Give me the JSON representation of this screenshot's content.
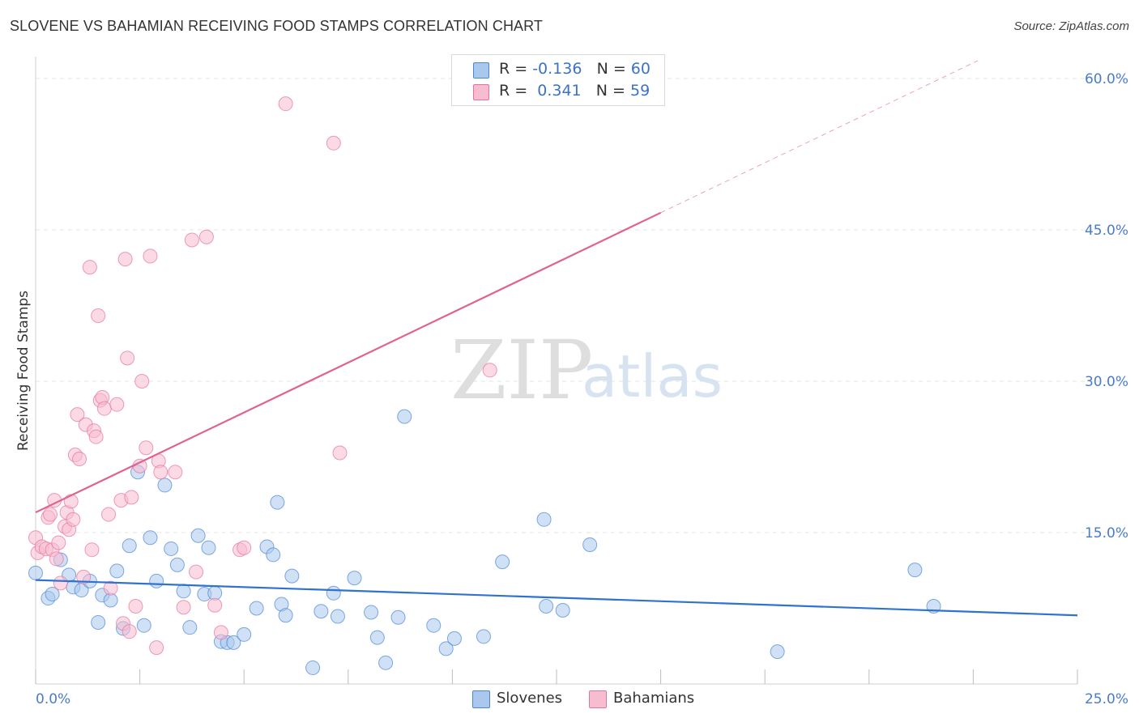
{
  "title": "SLOVENE VS BAHAMIAN RECEIVING FOOD STAMPS CORRELATION CHART",
  "source": "Source: ZipAtlas.com",
  "watermark": {
    "zip": "ZIP",
    "atlas": "atlas"
  },
  "legend": {
    "rows": [
      {
        "r_label": "R = ",
        "r_value": "-0.136",
        "n_label": "N = ",
        "n_value": "60"
      },
      {
        "r_label": "R = ",
        "r_value": " 0.341",
        "n_label": "N = ",
        "n_value": "59"
      }
    ]
  },
  "colors": {
    "slovenes": "#4a86d6",
    "bahamians": "#e5739b",
    "slovenes_fill": "#aac8ee",
    "bahamians_fill": "#f7bccf",
    "tick_label": "#4a7cc9"
  },
  "chart_data": {
    "type": "scatter",
    "title": "SLOVENE VS BAHAMIAN RECEIVING FOOD STAMPS CORRELATION CHART",
    "xlabel": "",
    "ylabel": "Receiving Food Stamps",
    "xlim": [
      0,
      25
    ],
    "ylim": [
      0,
      61.5
    ],
    "x_tick_labels": [
      {
        "value": 0,
        "label": "0.0%"
      },
      {
        "value": 25,
        "label": "25.0%"
      }
    ],
    "y_tick_labels": [
      {
        "value": 15,
        "label": "15.0%"
      },
      {
        "value": 30,
        "label": "30.0%"
      },
      {
        "value": 45,
        "label": "45.0%"
      },
      {
        "value": 60,
        "label": "60.0%"
      }
    ],
    "grid": true,
    "legend_position": "top-center",
    "series": [
      {
        "name": "Slovenes",
        "r": -0.136,
        "n": 60,
        "trend": {
          "x0": 0,
          "y0": 10.3,
          "x1": 25,
          "y1": 6.8,
          "solid_until": 25
        },
        "points": [
          [
            0.0,
            11.0
          ],
          [
            0.3,
            8.5
          ],
          [
            0.4,
            8.9
          ],
          [
            0.6,
            12.3
          ],
          [
            0.8,
            10.8
          ],
          [
            0.9,
            9.6
          ],
          [
            1.1,
            9.3
          ],
          [
            1.3,
            10.2
          ],
          [
            1.5,
            6.1
          ],
          [
            1.6,
            8.8
          ],
          [
            1.8,
            8.3
          ],
          [
            1.95,
            11.2
          ],
          [
            2.1,
            5.5
          ],
          [
            2.25,
            13.7
          ],
          [
            2.45,
            21.0
          ],
          [
            2.6,
            5.8
          ],
          [
            2.75,
            14.5
          ],
          [
            2.9,
            10.2
          ],
          [
            3.1,
            19.7
          ],
          [
            3.25,
            13.4
          ],
          [
            3.4,
            11.8
          ],
          [
            3.55,
            9.2
          ],
          [
            3.7,
            5.6
          ],
          [
            3.9,
            14.7
          ],
          [
            4.05,
            8.9
          ],
          [
            4.15,
            13.5
          ],
          [
            4.3,
            9.0
          ],
          [
            4.45,
            4.2
          ],
          [
            4.6,
            4.1
          ],
          [
            4.75,
            4.1
          ],
          [
            5.0,
            4.9
          ],
          [
            5.3,
            7.5
          ],
          [
            5.55,
            13.6
          ],
          [
            5.7,
            12.8
          ],
          [
            5.8,
            18.0
          ],
          [
            5.9,
            7.9
          ],
          [
            6.0,
            6.8
          ],
          [
            6.15,
            10.7
          ],
          [
            6.65,
            1.6
          ],
          [
            6.85,
            7.2
          ],
          [
            7.15,
            9.0
          ],
          [
            7.25,
            6.7
          ],
          [
            7.65,
            10.5
          ],
          [
            8.05,
            7.1
          ],
          [
            8.2,
            4.6
          ],
          [
            8.4,
            2.1
          ],
          [
            8.7,
            6.6
          ],
          [
            8.85,
            26.5
          ],
          [
            9.55,
            5.8
          ],
          [
            9.85,
            3.5
          ],
          [
            10.05,
            4.5
          ],
          [
            10.75,
            4.7
          ],
          [
            11.2,
            12.1
          ],
          [
            12.2,
            16.3
          ],
          [
            12.25,
            7.7
          ],
          [
            12.65,
            7.3
          ],
          [
            13.3,
            13.8
          ],
          [
            17.8,
            3.2
          ],
          [
            21.1,
            11.3
          ],
          [
            21.55,
            7.7
          ]
        ]
      },
      {
        "name": "Bahamians",
        "r": 0.341,
        "n": 59,
        "trend": {
          "x0": 0,
          "y0": 17.0,
          "x1": 25,
          "y1": 66.5,
          "solid_until": 15
        },
        "points": [
          [
            0.0,
            14.5
          ],
          [
            0.05,
            13.0
          ],
          [
            0.15,
            13.6
          ],
          [
            0.25,
            13.4
          ],
          [
            0.3,
            16.5
          ],
          [
            0.35,
            16.8
          ],
          [
            0.4,
            13.3
          ],
          [
            0.45,
            18.2
          ],
          [
            0.5,
            12.4
          ],
          [
            0.55,
            14.0
          ],
          [
            0.6,
            10.0
          ],
          [
            0.7,
            15.6
          ],
          [
            0.75,
            17.0
          ],
          [
            0.8,
            15.3
          ],
          [
            0.85,
            18.1
          ],
          [
            0.9,
            16.3
          ],
          [
            0.95,
            22.7
          ],
          [
            1.0,
            26.7
          ],
          [
            1.05,
            22.3
          ],
          [
            1.15,
            10.6
          ],
          [
            1.2,
            25.7
          ],
          [
            1.3,
            41.3
          ],
          [
            1.35,
            13.3
          ],
          [
            1.4,
            25.1
          ],
          [
            1.45,
            24.5
          ],
          [
            1.5,
            36.5
          ],
          [
            1.55,
            28.1
          ],
          [
            1.6,
            28.4
          ],
          [
            1.65,
            27.3
          ],
          [
            1.75,
            16.8
          ],
          [
            1.8,
            9.5
          ],
          [
            1.95,
            27.7
          ],
          [
            2.05,
            18.2
          ],
          [
            2.1,
            6.0
          ],
          [
            2.15,
            42.1
          ],
          [
            2.2,
            32.3
          ],
          [
            2.25,
            5.2
          ],
          [
            2.3,
            18.5
          ],
          [
            2.4,
            7.7
          ],
          [
            2.5,
            21.6
          ],
          [
            2.55,
            30.0
          ],
          [
            2.65,
            23.4
          ],
          [
            2.75,
            42.4
          ],
          [
            2.9,
            3.6
          ],
          [
            2.95,
            22.1
          ],
          [
            3.0,
            21.0
          ],
          [
            3.35,
            21.0
          ],
          [
            3.55,
            7.6
          ],
          [
            3.75,
            44.0
          ],
          [
            3.85,
            11.1
          ],
          [
            4.1,
            44.3
          ],
          [
            4.3,
            7.8
          ],
          [
            4.45,
            5.1
          ],
          [
            4.9,
            13.3
          ],
          [
            5.0,
            13.5
          ],
          [
            6.0,
            57.5
          ],
          [
            7.15,
            53.6
          ],
          [
            7.3,
            22.9
          ],
          [
            10.9,
            31.1
          ]
        ]
      }
    ]
  }
}
